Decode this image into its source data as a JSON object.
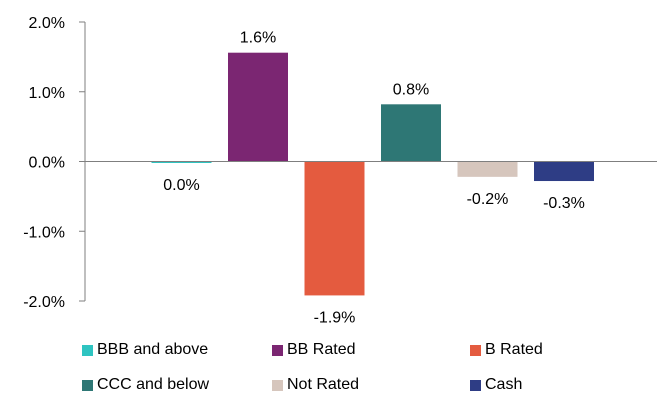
{
  "chart_data": {
    "type": "bar",
    "categories": [
      "BBB and above",
      "BB Rated",
      "B Rated",
      "CCC and below",
      "Not Rated",
      "Cash"
    ],
    "values": [
      -0.02,
      1.56,
      -1.92,
      0.82,
      -0.22,
      -0.28
    ],
    "data_labels": [
      "0.0%",
      "1.6%",
      "-1.9%",
      "0.8%",
      "-0.2%",
      "-0.3%"
    ],
    "colors": [
      "#2ec4c1",
      "#7b2672",
      "#e45b3f",
      "#2e7775",
      "#d6c6bd",
      "#2e3d85"
    ],
    "ylim": [
      -2.0,
      2.0
    ],
    "yticks": [
      "2.0%",
      "1.0%",
      "0.0%",
      "-1.0%",
      "-2.0%"
    ],
    "ytick_values": [
      2.0,
      1.0,
      0.0,
      -1.0,
      -2.0
    ],
    "legend_position": "bottom",
    "grid": false
  }
}
